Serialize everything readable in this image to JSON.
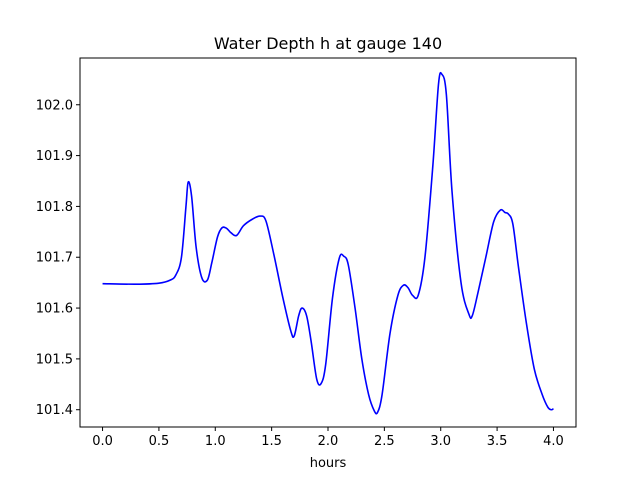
{
  "chart_data": {
    "type": "line",
    "title": "Water Depth h at gauge 140",
    "xlabel": "hours",
    "ylabel": "",
    "xlim": [
      -0.2,
      4.2
    ],
    "ylim": [
      101.366,
      102.092
    ],
    "x_ticks": [
      0.0,
      0.5,
      1.0,
      1.5,
      2.0,
      2.5,
      3.0,
      3.5,
      4.0
    ],
    "x_tick_labels": [
      "0.0",
      "0.5",
      "1.0",
      "1.5",
      "2.0",
      "2.5",
      "3.0",
      "3.5",
      "4.0"
    ],
    "y_ticks": [
      101.4,
      101.5,
      101.6,
      101.7,
      101.8,
      101.9,
      102.0
    ],
    "y_tick_labels": [
      "101.4",
      "101.5",
      "101.6",
      "101.7",
      "101.8",
      "101.9",
      "102.0"
    ],
    "grid": false,
    "series": [
      {
        "color": "#0000ff",
        "x": [
          0.0,
          0.3,
          0.5,
          0.6,
          0.65,
          0.7,
          0.74,
          0.76,
          0.79,
          0.83,
          0.88,
          0.93,
          0.97,
          1.02,
          1.06,
          1.1,
          1.14,
          1.19,
          1.25,
          1.33,
          1.4,
          1.45,
          1.52,
          1.6,
          1.67,
          1.7,
          1.74,
          1.77,
          1.81,
          1.85,
          1.9,
          1.94,
          1.98,
          2.04,
          2.1,
          2.14,
          2.18,
          2.24,
          2.3,
          2.36,
          2.41,
          2.44,
          2.48,
          2.55,
          2.62,
          2.67,
          2.71,
          2.75,
          2.8,
          2.86,
          2.93,
          2.98,
          3.01,
          3.05,
          3.1,
          3.18,
          3.25,
          3.28,
          3.33,
          3.4,
          3.47,
          3.53,
          3.57,
          3.6,
          3.64,
          3.69,
          3.76,
          3.83,
          3.9,
          3.95,
          3.98,
          4.0
        ],
        "y": [
          101.648,
          101.647,
          101.649,
          101.655,
          101.665,
          101.7,
          101.8,
          101.848,
          101.82,
          101.72,
          101.66,
          101.655,
          101.69,
          101.74,
          101.758,
          101.757,
          101.748,
          101.743,
          101.762,
          101.775,
          101.781,
          101.771,
          101.705,
          101.62,
          101.555,
          101.545,
          101.585,
          101.6,
          101.585,
          101.535,
          101.46,
          101.452,
          101.49,
          101.62,
          101.698,
          101.702,
          101.685,
          101.6,
          101.5,
          101.43,
          101.398,
          101.395,
          101.43,
          101.55,
          101.625,
          101.645,
          101.64,
          101.625,
          101.625,
          101.7,
          101.88,
          102.04,
          102.06,
          102.02,
          101.83,
          101.65,
          101.588,
          101.585,
          101.63,
          101.7,
          101.77,
          101.793,
          101.788,
          101.785,
          101.765,
          101.68,
          101.57,
          101.48,
          101.43,
          101.405,
          101.4,
          101.402
        ]
      }
    ]
  }
}
